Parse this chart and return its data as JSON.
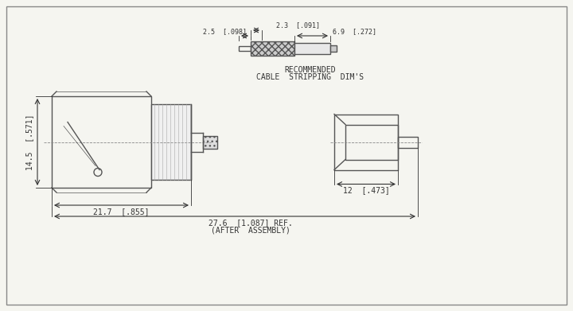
{
  "bg_color": "#f5f5f0",
  "line_color": "#555555",
  "line_width": 1.0,
  "thin_line": 0.5,
  "dim_color": "#333333",
  "font_size": 7,
  "title_font_size": 7,
  "cable_strip": {
    "label1": "2.5  [.098]",
    "label2": "2.3  [.091]",
    "label3": "6.9  [.272]",
    "caption1": "RECOMMENDED",
    "caption2": "CABLE  STRIPPING  DIM'S"
  },
  "connector": {
    "dim_height": "14.5  [.571]",
    "dim_21_7": "21.7  [.855]",
    "dim_27_6": "27.6  [1.087] REF.",
    "dim_after": "(AFTER  ASSEMBLY)",
    "dim_12": "12  [.473]"
  }
}
